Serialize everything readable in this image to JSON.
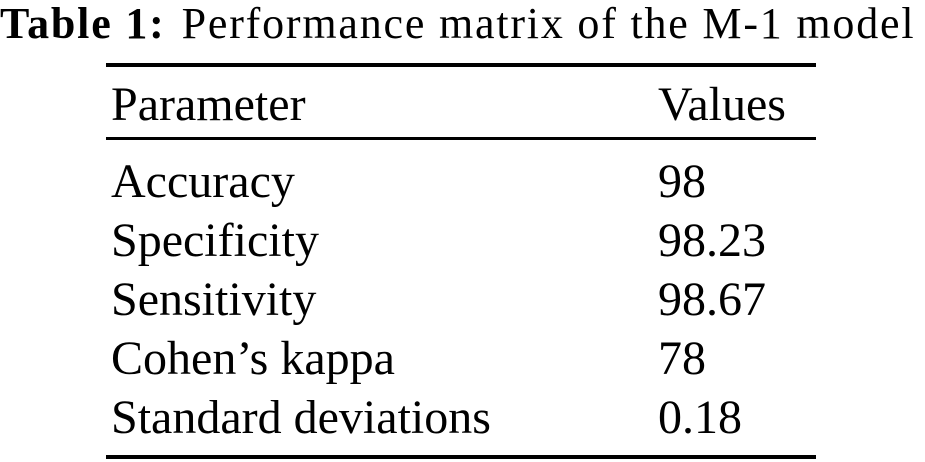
{
  "caption": {
    "label": "Table 1:",
    "title": "Performance matrix of the M-1 model"
  },
  "table": {
    "headers": {
      "parameter": "Parameter",
      "values": "Values"
    },
    "rows": [
      {
        "parameter": "Accuracy",
        "value": "98"
      },
      {
        "parameter": "Specificity",
        "value": "98.23"
      },
      {
        "parameter": "Sensitivity",
        "value": "98.67"
      },
      {
        "parameter": "Cohen’s kappa",
        "value": "78"
      },
      {
        "parameter": "Standard deviations",
        "value": "0.18"
      }
    ]
  },
  "colors": {
    "text": "#000000",
    "background": "#ffffff",
    "rule": "#000000"
  },
  "chart_data": {
    "type": "table",
    "title": "Table 1: Performance matrix of the M-1 model",
    "columns": [
      "Parameter",
      "Values"
    ],
    "rows": [
      [
        "Accuracy",
        98
      ],
      [
        "Specificity",
        98.23
      ],
      [
        "Sensitivity",
        98.67
      ],
      [
        "Cohen’s kappa",
        78
      ],
      [
        "Standard deviations",
        0.18
      ]
    ]
  }
}
